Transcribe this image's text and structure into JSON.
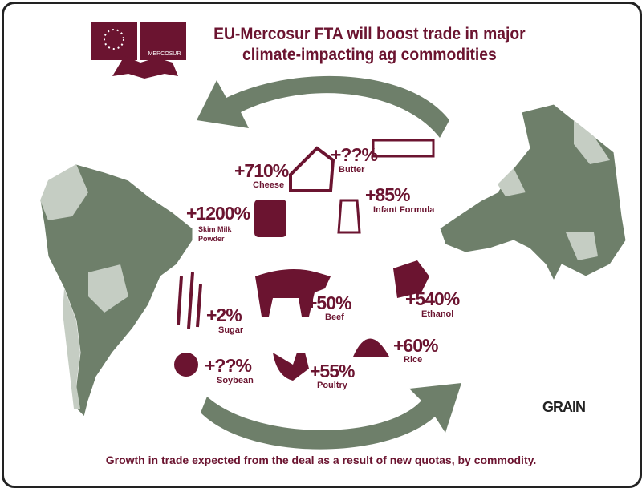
{
  "header": {
    "title_line1": "EU-Mercosur FTA will boost trade in major",
    "title_line2": "climate-impacting ag commodities",
    "logo_text": "MERCOSUR"
  },
  "commodities": [
    {
      "name": "Cheese",
      "change": "+710%",
      "icon": "cheese-icon"
    },
    {
      "name": "Butter",
      "change": "+??%",
      "icon": "butter-icon"
    },
    {
      "name": "Infant Formula",
      "change": "+85%",
      "icon": "baby-bottle-icon"
    },
    {
      "name_line1": "Skim Milk",
      "name_line2": "Powder",
      "change": "+1200%",
      "icon": "milk-powder-can-icon"
    },
    {
      "name": "Sugar",
      "change": "+2%",
      "icon": "sugarcane-icon"
    },
    {
      "name": "Beef",
      "change": "+50%",
      "icon": "cow-icon"
    },
    {
      "name": "Ethanol",
      "change": "+540%",
      "icon": "fuel-nozzle-icon"
    },
    {
      "name": "Soybean",
      "change": "+??%",
      "icon": "soybean-icon"
    },
    {
      "name": "Poultry",
      "change": "+55%",
      "icon": "chicken-icon"
    },
    {
      "name": "Rice",
      "change": "+60%",
      "icon": "rice-icon"
    }
  ],
  "caption": "Growth in trade expected from the deal as a result of new quotas, by commodity.",
  "brand": "GRAIN",
  "colors": {
    "accent": "#6b1430",
    "map": "#6e7f6a",
    "map_light": "#c5cdc3",
    "arrow": "#6e7f6a"
  }
}
